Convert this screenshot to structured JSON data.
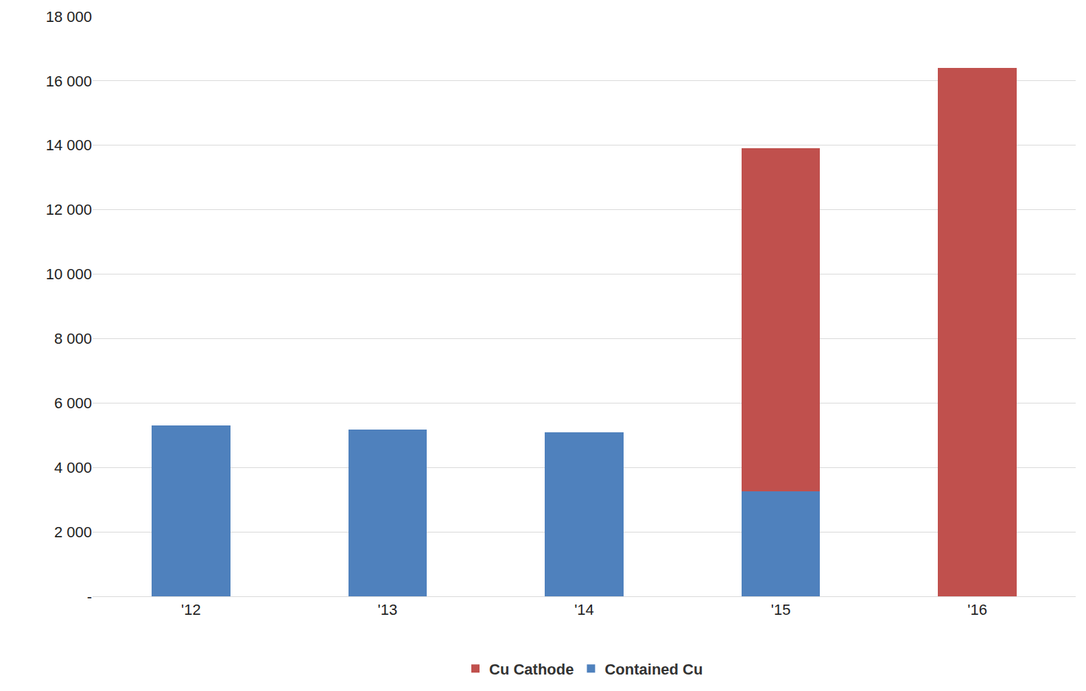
{
  "chart_data": {
    "type": "bar",
    "stacked": true,
    "categories": [
      "'12",
      "'13",
      "'14",
      "'15",
      "'16"
    ],
    "series": [
      {
        "name": "Contained Cu",
        "color": "#4f81bd",
        "values": [
          5300,
          5180,
          5090,
          3250,
          null
        ]
      },
      {
        "name": "Cu Cathode",
        "color": "#c0504d",
        "values": [
          null,
          null,
          null,
          10650,
          16400
        ]
      }
    ],
    "ylim": [
      0,
      18000
    ],
    "yticks": [
      {
        "value": 0,
        "label": "-"
      },
      {
        "value": 2000,
        "label": "2 000"
      },
      {
        "value": 4000,
        "label": "4 000"
      },
      {
        "value": 6000,
        "label": "6 000"
      },
      {
        "value": 8000,
        "label": "8 000"
      },
      {
        "value": 10000,
        "label": "10 000"
      },
      {
        "value": 12000,
        "label": "12 000"
      },
      {
        "value": 14000,
        "label": "14 000"
      },
      {
        "value": 16000,
        "label": "16 000"
      },
      {
        "value": 18000,
        "label": "18 000"
      }
    ],
    "grid": true,
    "legend": "bottom"
  }
}
